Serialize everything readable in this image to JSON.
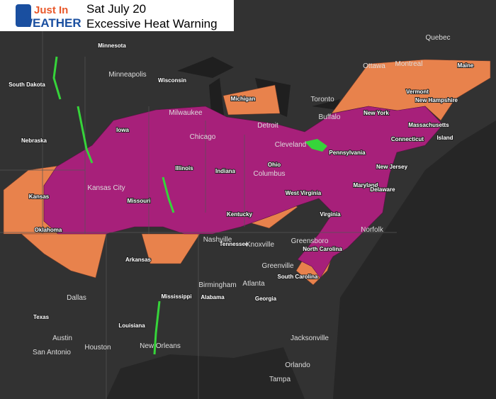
{
  "header": {
    "logo_top": "Just In",
    "logo_bottom": "WEATHER",
    "date": "Sat July 20",
    "title": "Excessive Heat Warning"
  },
  "states": [
    "Minnesota",
    "South Dakota",
    "Wisconsin",
    "Michigan",
    "Iowa",
    "Nebraska",
    "Illinois",
    "Indiana",
    "Ohio",
    "Pennsylvania",
    "New York",
    "Vermont",
    "New Hampshire",
    "Maine",
    "Massachusetts",
    "Connecticut",
    "Island",
    "New Jersey",
    "Maryland",
    "Delaware",
    "West Virginia",
    "Virginia",
    "Kentucky",
    "Missouri",
    "Kansas",
    "Oklahoma",
    "Arkansas",
    "Tennessee",
    "North Carolina",
    "South Carolina",
    "Georgia",
    "Alabama",
    "Mississippi",
    "Louisiana",
    "Texas"
  ],
  "cities": [
    "Minneapolis",
    "Quebec",
    "Ottawa",
    "Montreal",
    "Toronto",
    "Buffalo",
    "Milwaukee",
    "Chicago",
    "Detroit",
    "Cleveland",
    "Columbus",
    "Kansas City",
    "Nashville",
    "Knoxville",
    "Greenville",
    "Birmingham",
    "Atlanta",
    "Dallas",
    "Austin",
    "Houston",
    "San Antonio",
    "New Orleans",
    "Jacksonville",
    "Orlando",
    "Tampa",
    "Norfolk",
    "Greensboro"
  ]
}
